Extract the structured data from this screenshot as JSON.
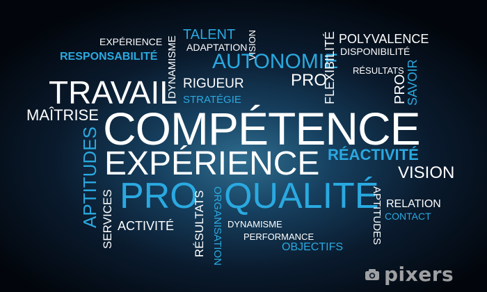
{
  "words": {
    "competence": "COMPÉTENCE",
    "experience_big": "EXPÉRIENCE",
    "travail": "TRAVAIL",
    "pro_big": "PRO",
    "qualite": "QUALITÉ",
    "autonomie": "AUTONOMIE",
    "talent": "TALENT",
    "adaptation": "ADAPTATION",
    "experience_small": "EXPÉRIENCE",
    "responsabilite": "RESPONSABILITÉ",
    "rigueur": "RIGUEUR",
    "strategie": "STRATÉGIE",
    "pro_mid": "PRO",
    "polyvalence": "POLYVALENCE",
    "disponibilite": "DISPONIBILITÉ",
    "resultats_small": "RÉSULTATS",
    "maitrise": "MAÎTRISE",
    "reactivite": "RÉACTIVITÉ",
    "vision_big": "VISION",
    "relation": "RELATION",
    "contact": "CONTACT",
    "activite": "ACTIVITÉ",
    "dynamisme_h": "DYNAMISME",
    "performance": "PERFORMANCE",
    "objectifs": "OBJECTIFS",
    "vision_vertical": "VISION",
    "dynamisme_vertical": "DYNAMISME",
    "flexibilite": "FLEXIBILITÉ",
    "pro_vertical": "PRO",
    "savoir": "SAVOIR",
    "aptitudes_left": "APTITUDES",
    "services": "SERVICES",
    "resultats_vertical": "RÉSULTATS",
    "organisation": "ORGANISATION",
    "aptitudes_right": "APTITUDES"
  },
  "watermark": {
    "icon": "camera-icon",
    "brand": "pixers"
  },
  "colors": {
    "white_word": "#ffffff",
    "blue_word": "#2aa9e0",
    "background_center": "#2f6d8f",
    "background_edge": "#02060c"
  }
}
